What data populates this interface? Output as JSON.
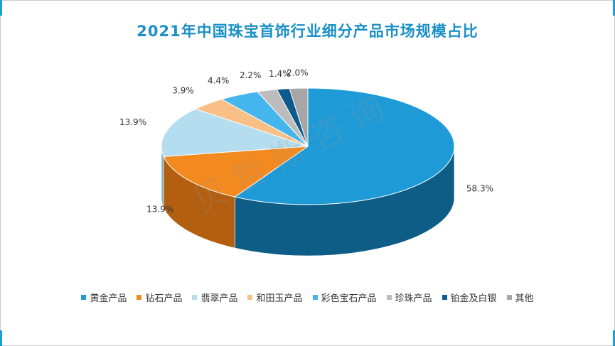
{
  "title": "2021年中国珠宝首饰行业细分产品市场规模占比",
  "watermark": "贝哲斯咨询",
  "chart_data": {
    "type": "pie",
    "style": "3d",
    "title": "2021年中国珠宝首饰行业细分产品市场规模占比",
    "legend_position": "bottom",
    "slices": [
      {
        "name": "黄金产品",
        "value": 58.3,
        "label": "58.3%",
        "color": "#1e9bd7",
        "side": "#0e5d86"
      },
      {
        "name": "钻石产品",
        "value": 13.9,
        "label": "13.9%",
        "color": "#f28a1f",
        "side": "#b35f10"
      },
      {
        "name": "翡翠产品",
        "value": 13.9,
        "label": "13.9%",
        "color": "#b4def0",
        "side": "#7fb0c6"
      },
      {
        "name": "和田玉产品",
        "value": 3.9,
        "label": "3.9%",
        "color": "#f8bf86",
        "side": "#c28c59"
      },
      {
        "name": "彩色宝石产品",
        "value": 4.4,
        "label": "4.4%",
        "color": "#45b5ee",
        "side": "#2a82b1"
      },
      {
        "name": "珍珠产品",
        "value": 2.2,
        "label": "2.2%",
        "color": "#bcbcbc",
        "side": "#858585"
      },
      {
        "name": "铂金及白银",
        "value": 1.4,
        "label": "1.4%",
        "color": "#0d5a8c",
        "side": "#073a5c"
      },
      {
        "name": "其他",
        "value": 2.0,
        "label": "2.0%",
        "color": "#a6a6a6",
        "side": "#707070"
      }
    ]
  }
}
